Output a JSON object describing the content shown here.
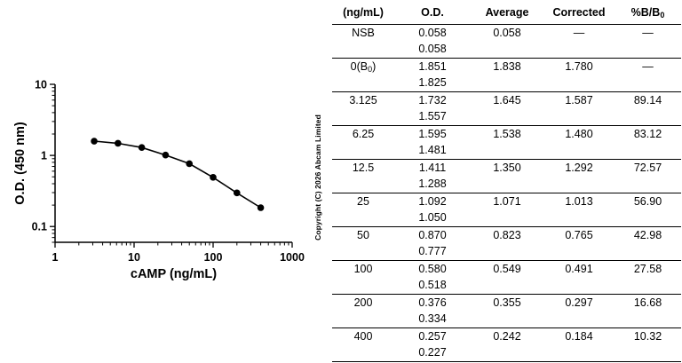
{
  "chart_data": {
    "type": "line",
    "xlabel": "cAMP (ng/mL)",
    "ylabel": "O.D. (450 nm)",
    "xscale": "log",
    "yscale": "log",
    "xlim": [
      1,
      1000
    ],
    "ylim": [
      0.06,
      10
    ],
    "x_tick_labels": [
      "1",
      "10",
      "100",
      "1000"
    ],
    "y_tick_labels": [
      "0.1",
      "1",
      "10"
    ],
    "series": [
      {
        "x": [
          3.125,
          6.25,
          12.5,
          25,
          50,
          100,
          200,
          400
        ],
        "y": [
          1.587,
          1.48,
          1.292,
          1.013,
          0.765,
          0.491,
          0.297,
          0.184
        ]
      }
    ]
  },
  "copyright": "Copyright (C) 2026 Abcam Limited",
  "table": {
    "headers": [
      "(ng/mL)",
      "O.D.",
      "Average",
      "Corrected"
    ],
    "header_last": {
      "base": "%B/B",
      "sub": "0"
    },
    "rows": [
      {
        "conc": "NSB",
        "od": [
          "0.058",
          "0.058"
        ],
        "avg": "0.058",
        "corr": "—",
        "pct": "—"
      },
      {
        "conc": "0(B",
        "conc_sub": "0",
        "conc_suffix": ")",
        "od": [
          "1.851",
          "1.825"
        ],
        "avg": "1.838",
        "corr": "1.780",
        "pct": "—"
      },
      {
        "conc": "3.125",
        "od": [
          "1.732",
          "1.557"
        ],
        "avg": "1.645",
        "corr": "1.587",
        "pct": "89.14"
      },
      {
        "conc": "6.25",
        "od": [
          "1.595",
          "1.481"
        ],
        "avg": "1.538",
        "corr": "1.480",
        "pct": "83.12"
      },
      {
        "conc": "12.5",
        "od": [
          "1.411",
          "1.288"
        ],
        "avg": "1.350",
        "corr": "1.292",
        "pct": "72.57"
      },
      {
        "conc": "25",
        "od": [
          "1.092",
          "1.050"
        ],
        "avg": "1.071",
        "corr": "1.013",
        "pct": "56.90"
      },
      {
        "conc": "50",
        "od": [
          "0.870",
          "0.777"
        ],
        "avg": "0.823",
        "corr": "0.765",
        "pct": "42.98"
      },
      {
        "conc": "100",
        "od": [
          "0.580",
          "0.518"
        ],
        "avg": "0.549",
        "corr": "0.491",
        "pct": "27.58"
      },
      {
        "conc": "200",
        "od": [
          "0.376",
          "0.334"
        ],
        "avg": "0.355",
        "corr": "0.297",
        "pct": "16.68"
      },
      {
        "conc": "400",
        "od": [
          "0.257",
          "0.227"
        ],
        "avg": "0.242",
        "corr": "0.184",
        "pct": "10.32"
      }
    ]
  }
}
